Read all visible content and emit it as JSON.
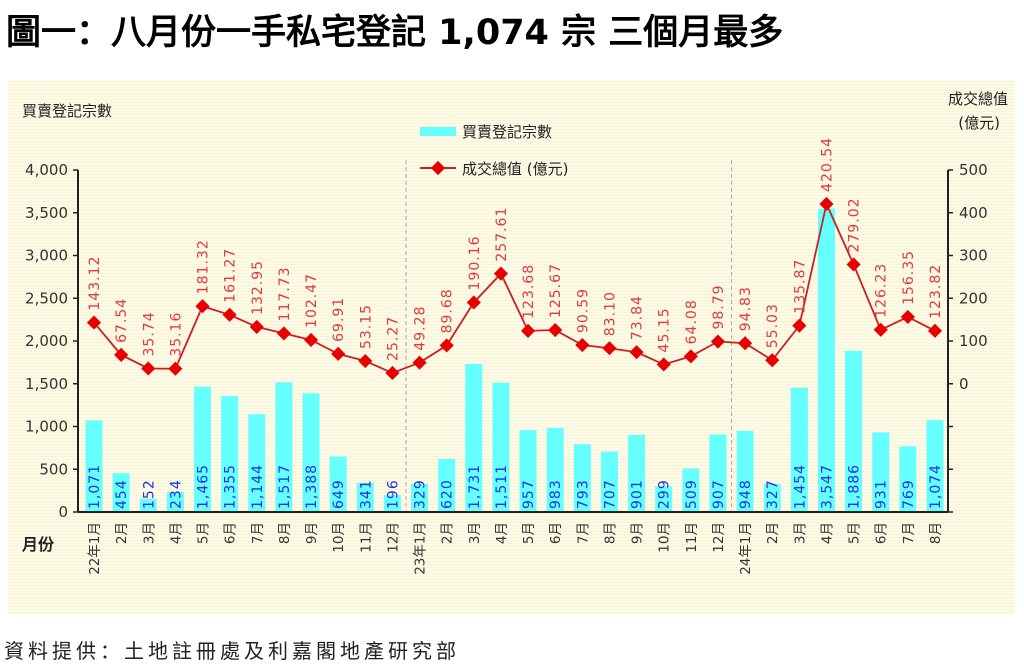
{
  "title": "圖一：八月份一手私宅登記 1,074 宗  三個月最多",
  "source": "資料提供：土地註冊處及利嘉閣地產研究部",
  "chart_data": {
    "type": "bar+line",
    "title": "圖一：八月份一手私宅登記 1,074 宗  三個月最多",
    "xlabel": "月份",
    "ylabel": "買賣登記宗數",
    "y2label_line1": "成交總值",
    "y2label_line2": "(億元)",
    "ylim": [
      0,
      4000
    ],
    "y2lim": [
      -300,
      500
    ],
    "yticks": [
      "0",
      "500",
      "1,000",
      "1,500",
      "2,000",
      "2,500",
      "3,000",
      "3,500",
      "4,000"
    ],
    "ytick_values": [
      0,
      500,
      1000,
      1500,
      2000,
      2500,
      3000,
      3500,
      4000
    ],
    "y2ticks": [
      "0",
      "100",
      "200",
      "300",
      "400",
      "500"
    ],
    "y2tick_values": [
      0,
      100,
      200,
      300,
      400,
      500
    ],
    "legend": [
      "買賣登記宗數",
      "成交總值 (億元)"
    ],
    "legend_position": "top-center",
    "categories": [
      "22年1月",
      "2月",
      "3月",
      "4月",
      "5月",
      "6月",
      "7月",
      "8月",
      "9月",
      "10月",
      "11月",
      "12月",
      "23年1月",
      "2月",
      "3月",
      "4月",
      "5月",
      "6月",
      "7月",
      "8月",
      "9月",
      "10月",
      "11月",
      "12月",
      "24年1月",
      "2月",
      "3月",
      "4月",
      "5月",
      "6月",
      "7月",
      "8月"
    ],
    "series": [
      {
        "name": "買賣登記宗數",
        "type": "bar",
        "color": "#66ffff",
        "values": [
          1071,
          454,
          152,
          234,
          1465,
          1355,
          1144,
          1517,
          1388,
          649,
          341,
          196,
          329,
          620,
          1731,
          1511,
          957,
          983,
          793,
          707,
          901,
          299,
          509,
          907,
          948,
          327,
          1454,
          3547,
          1886,
          931,
          769,
          1074
        ],
        "labels": [
          "1,071",
          "454",
          "152",
          "234",
          "1,465",
          "1,355",
          "1,144",
          "1,517",
          "1,388",
          "649",
          "341",
          "196",
          "329",
          "620",
          "1,731",
          "1,511",
          "957",
          "983",
          "793",
          "707",
          "901",
          "299",
          "509",
          "907",
          "948",
          "327",
          "1,454",
          "3,547",
          "1,886",
          "931",
          "769",
          "1,074"
        ]
      },
      {
        "name": "成交總值 (億元)",
        "type": "line",
        "axis": "right",
        "color": "#e00000",
        "values": [
          143.12,
          67.54,
          35.74,
          35.16,
          181.32,
          161.27,
          132.95,
          117.73,
          102.47,
          69.91,
          53.15,
          25.27,
          49.28,
          89.68,
          190.16,
          257.61,
          123.68,
          125.67,
          90.59,
          83.1,
          73.84,
          45.15,
          64.08,
          98.79,
          94.83,
          55.03,
          135.87,
          420.54,
          279.02,
          126.23,
          156.35,
          123.82
        ],
        "labels": [
          "143.12",
          "67.54",
          "35.74",
          "35.16",
          "181.32",
          "161.27",
          "132.95",
          "117.73",
          "102.47",
          "69.91",
          "53.15",
          "25.27",
          "49.28",
          "89.68",
          "190.16",
          "257.61",
          "123.68",
          "125.67",
          "90.59",
          "83.10",
          "73.84",
          "45.15",
          "64.08",
          "98.79",
          "94.83",
          "55.03",
          "135.87",
          "420.54",
          "279.02",
          "126.23",
          "156.35",
          "123.82"
        ]
      }
    ],
    "year_separators_after_index": [
      11,
      23
    ]
  }
}
